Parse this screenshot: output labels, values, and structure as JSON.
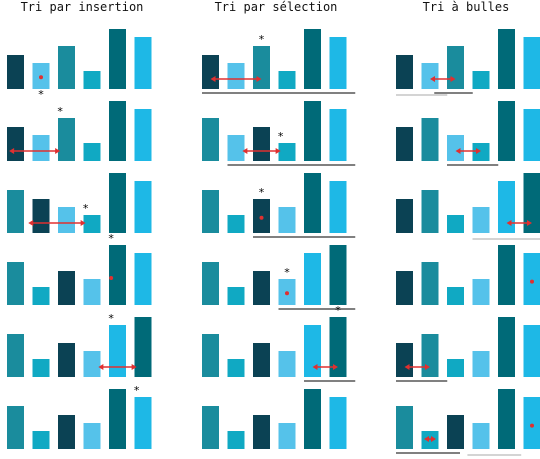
{
  "titles": [
    "Tri par insertion",
    "Tri par sélection",
    "Tri à bulles"
  ],
  "colors": {
    "bar_colors": [
      "#0b4254",
      "#1a8c9d",
      "#10a9c3",
      "#55c2ea",
      "#006a78",
      "#1eb8e6"
    ],
    "arrow": "#e03030",
    "star": "#000000",
    "line": "#000000",
    "line_faded": "#aaaaaa"
  },
  "bar_heights": [
    34,
    43,
    18,
    26,
    60,
    52
  ],
  "columns": [
    {
      "name": "insertion",
      "rows": [
        {
          "order": [
            0,
            3,
            1,
            2,
            4,
            5
          ],
          "star": 1,
          "dot": 1,
          "arrow": null,
          "lines": []
        },
        {
          "order": [
            0,
            3,
            1,
            2,
            4,
            5
          ],
          "star": 1.75,
          "dot": null,
          "arrow": [
            1.75,
            -0.25
          ],
          "lines": []
        },
        {
          "order": [
            1,
            0,
            3,
            2,
            4,
            5
          ],
          "star": 2.75,
          "dot": null,
          "arrow": [
            2.75,
            0.5
          ],
          "lines": []
        },
        {
          "order": [
            1,
            2,
            0,
            3,
            4,
            5
          ],
          "star": 3.75,
          "dot": 3.75,
          "arrow": null,
          "lines": []
        },
        {
          "order": [
            1,
            2,
            0,
            3,
            5,
            4
          ],
          "star": 3.75,
          "dot": null,
          "arrow": [
            4.75,
            3.25
          ],
          "lines": []
        },
        {
          "order": [
            1,
            2,
            0,
            3,
            4,
            5
          ],
          "star": 4.75,
          "dot": null,
          "arrow": null,
          "lines": []
        }
      ]
    },
    {
      "name": "selection",
      "rows": [
        {
          "order": [
            0,
            3,
            1,
            2,
            4,
            5
          ],
          "star": 2,
          "dot": null,
          "arrow": [
            0,
            2
          ],
          "lines": [
            [
              0,
              5.5,
              false
            ]
          ]
        },
        {
          "order": [
            1,
            3,
            0,
            2,
            4,
            5
          ],
          "star": 2.75,
          "dot": null,
          "arrow": [
            1.25,
            2.75
          ],
          "lines": [
            [
              1,
              5.5,
              false
            ]
          ]
        },
        {
          "order": [
            1,
            2,
            0,
            3,
            4,
            5
          ],
          "star": 2,
          "dot": 2,
          "arrow": null,
          "lines": [
            [
              2,
              5.5,
              false
            ]
          ]
        },
        {
          "order": [
            1,
            2,
            0,
            3,
            5,
            4
          ],
          "star": 3,
          "dot": 3,
          "arrow": null,
          "lines": [
            [
              3,
              5.5,
              false
            ]
          ]
        },
        {
          "order": [
            1,
            2,
            0,
            3,
            5,
            4
          ],
          "star": 5,
          "dot": null,
          "arrow": [
            4,
            5
          ],
          "lines": [
            [
              4,
              5.5,
              false
            ]
          ]
        },
        {
          "order": [
            1,
            2,
            0,
            3,
            4,
            5
          ],
          "star": null,
          "dot": null,
          "arrow": null,
          "lines": []
        }
      ]
    },
    {
      "name": "bubbles",
      "rows": [
        {
          "order": [
            0,
            3,
            1,
            2,
            4,
            5
          ],
          "star": null,
          "dot": null,
          "arrow": [
            1,
            2
          ],
          "lines": [
            [
              0,
              1.5,
              true
            ],
            [
              1.5,
              2.5,
              false
            ]
          ]
        },
        {
          "order": [
            0,
            1,
            3,
            2,
            4,
            5
          ],
          "star": null,
          "dot": null,
          "arrow": [
            2,
            3
          ],
          "lines": [
            [
              2,
              3.5,
              false
            ]
          ]
        },
        {
          "order": [
            0,
            1,
            2,
            3,
            5,
            4
          ],
          "star": null,
          "dot": null,
          "arrow": [
            4,
            5
          ],
          "lines": [
            [
              3,
              4.5,
              true
            ],
            [
              4,
              5.5,
              true
            ]
          ]
        },
        {
          "order": [
            0,
            1,
            2,
            3,
            4,
            5
          ],
          "star": null,
          "dot": 5,
          "arrow": null,
          "lines": []
        },
        {
          "order": [
            0,
            1,
            2,
            3,
            4,
            5
          ],
          "star": null,
          "dot": null,
          "arrow": [
            0,
            1
          ],
          "lines": [
            [
              0,
              1.5,
              false
            ]
          ]
        },
        {
          "order": [
            1,
            2,
            0,
            3,
            4,
            5
          ],
          "star": null,
          "dot": 5,
          "arrow": [
            1,
            1
          ],
          "lines": [
            [
              0,
              1.5,
              false
            ],
            [
              0.5,
              2,
              false
            ],
            [
              2.8,
              4,
              true
            ],
            [
              3,
              4.4,
              true
            ]
          ]
        }
      ]
    }
  ]
}
